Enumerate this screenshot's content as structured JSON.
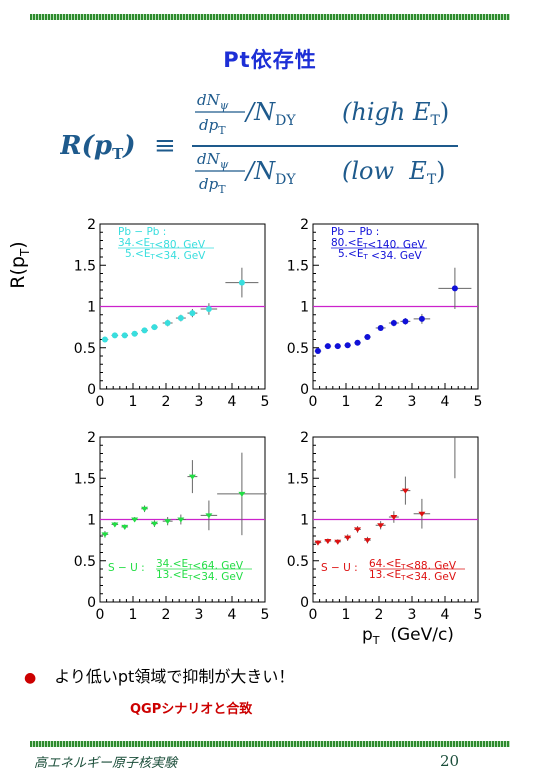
{
  "slide": {
    "title": "Pt依存性",
    "formula": {
      "lhs": "R(p",
      "lhs_sub": "T",
      "lhs_close": ")",
      "equiv": "≡",
      "numerator": {
        "dN": "dN",
        "psi": "ψ",
        "dp": "dp",
        "dp_sub": "T",
        "slash": "/N",
        "dy_sub": "DY",
        "condition": "(high E",
        "cond_sub": "T",
        "cond_close": ")"
      },
      "denominator": {
        "dN": "dN",
        "psi": "ψ",
        "dp": "dp",
        "dp_sub": "T",
        "slash": "/N",
        "dy_sub": "DY",
        "condition": "(low  E",
        "cond_sub": "T",
        "cond_close": ")"
      }
    },
    "y_axis_label": "R(p",
    "y_axis_label_sub": "T",
    "y_axis_label_close": ")",
    "x_axis_label": "p",
    "x_axis_label_sub": "T",
    "x_axis_label_unit": "  (GeV/c)",
    "bullet": "より低いpt領域で抑制が大きい！",
    "note": "QGPシナリオと合致",
    "footer_left": "高エネルギー原子核実験",
    "footer_right": "20"
  },
  "chart_data": [
    {
      "type": "scatter",
      "xlim": [
        0,
        5
      ],
      "ylim": [
        0,
        2
      ],
      "xticks": [
        "0",
        "1",
        "2",
        "3",
        "4",
        "5"
      ],
      "yticks": [
        "0",
        "0.5",
        "1",
        "1.5",
        "2"
      ],
      "reference_line": 1.0,
      "color": "#38dede",
      "legend_lines": [
        "Pb − Pb :",
        "34.<E_T<80. GeV",
        "5.<E_T<34. GeV"
      ],
      "legend_position": "top-left",
      "marker": "circle",
      "points": [
        {
          "x": 0.15,
          "y": 0.6,
          "xerr": 0.1,
          "yerr": 0.03
        },
        {
          "x": 0.45,
          "y": 0.65,
          "xerr": 0.1,
          "yerr": 0.03
        },
        {
          "x": 0.75,
          "y": 0.65,
          "xerr": 0.1,
          "yerr": 0.03
        },
        {
          "x": 1.05,
          "y": 0.67,
          "xerr": 0.1,
          "yerr": 0.03
        },
        {
          "x": 1.35,
          "y": 0.71,
          "xerr": 0.1,
          "yerr": 0.03
        },
        {
          "x": 1.65,
          "y": 0.75,
          "xerr": 0.1,
          "yerr": 0.03
        },
        {
          "x": 2.05,
          "y": 0.8,
          "xerr": 0.15,
          "yerr": 0.04
        },
        {
          "x": 2.45,
          "y": 0.86,
          "xerr": 0.15,
          "yerr": 0.04
        },
        {
          "x": 2.8,
          "y": 0.92,
          "xerr": 0.15,
          "yerr": 0.05
        },
        {
          "x": 3.3,
          "y": 0.97,
          "xerr": 0.25,
          "yerr": 0.07
        },
        {
          "x": 4.3,
          "y": 1.29,
          "xerr": 0.5,
          "yerr": 0.18
        }
      ]
    },
    {
      "type": "scatter",
      "xlim": [
        0,
        5
      ],
      "ylim": [
        0,
        2
      ],
      "xticks": [
        "0",
        "1",
        "2",
        "3",
        "4",
        "5"
      ],
      "yticks": [
        "0",
        "0.5",
        "1",
        "1.5",
        "2"
      ],
      "reference_line": 1.0,
      "color": "#1010d8",
      "legend_lines": [
        "Pb − Pb :",
        "80.<E_T<140. GeV",
        "5.<E_T  <34. GeV"
      ],
      "legend_position": "top-left",
      "marker": "circle",
      "points": [
        {
          "x": 0.15,
          "y": 0.46,
          "xerr": 0.1,
          "yerr": 0.03
        },
        {
          "x": 0.45,
          "y": 0.52,
          "xerr": 0.1,
          "yerr": 0.02
        },
        {
          "x": 0.75,
          "y": 0.52,
          "xerr": 0.1,
          "yerr": 0.02
        },
        {
          "x": 1.05,
          "y": 0.53,
          "xerr": 0.1,
          "yerr": 0.02
        },
        {
          "x": 1.35,
          "y": 0.56,
          "xerr": 0.1,
          "yerr": 0.02
        },
        {
          "x": 1.65,
          "y": 0.63,
          "xerr": 0.1,
          "yerr": 0.03
        },
        {
          "x": 2.05,
          "y": 0.74,
          "xerr": 0.15,
          "yerr": 0.03
        },
        {
          "x": 2.45,
          "y": 0.8,
          "xerr": 0.15,
          "yerr": 0.04
        },
        {
          "x": 2.8,
          "y": 0.82,
          "xerr": 0.15,
          "yerr": 0.04
        },
        {
          "x": 3.3,
          "y": 0.85,
          "xerr": 0.25,
          "yerr": 0.06
        },
        {
          "x": 4.3,
          "y": 1.22,
          "xerr": 0.5,
          "yerr": 0.25
        }
      ]
    },
    {
      "type": "scatter",
      "xlim": [
        0,
        5
      ],
      "ylim": [
        0,
        2
      ],
      "xticks": [
        "0",
        "1",
        "2",
        "3",
        "4",
        "5"
      ],
      "yticks": [
        "0",
        "0.5",
        "1",
        "1.5",
        "2"
      ],
      "reference_line": 1.0,
      "color": "#22dd44",
      "legend_lines": [
        "S − U :",
        "34.<E_T<64. GeV",
        "13.<E_T<34. GeV"
      ],
      "legend_position": "bottom-right",
      "marker": "triangle",
      "points": [
        {
          "x": 0.15,
          "y": 0.82,
          "xerr": 0.1,
          "yerr": 0.04
        },
        {
          "x": 0.45,
          "y": 0.94,
          "xerr": 0.1,
          "yerr": 0.03
        },
        {
          "x": 0.75,
          "y": 0.91,
          "xerr": 0.1,
          "yerr": 0.03
        },
        {
          "x": 1.05,
          "y": 1.0,
          "xerr": 0.1,
          "yerr": 0.03
        },
        {
          "x": 1.35,
          "y": 1.13,
          "xerr": 0.1,
          "yerr": 0.04
        },
        {
          "x": 1.65,
          "y": 0.95,
          "xerr": 0.1,
          "yerr": 0.04
        },
        {
          "x": 2.05,
          "y": 0.98,
          "xerr": 0.15,
          "yerr": 0.05
        },
        {
          "x": 2.45,
          "y": 1.0,
          "xerr": 0.15,
          "yerr": 0.06
        },
        {
          "x": 2.8,
          "y": 1.52,
          "xerr": 0.15,
          "yerr": 0.2
        },
        {
          "x": 3.3,
          "y": 1.05,
          "xerr": 0.25,
          "yerr": 0.18
        },
        {
          "x": 4.3,
          "y": 1.31,
          "xerr": 0.75,
          "yerr": 0.5
        }
      ]
    },
    {
      "type": "scatter",
      "xlim": [
        0,
        5
      ],
      "ylim": [
        0,
        2
      ],
      "xticks": [
        "0",
        "1",
        "2",
        "3",
        "4",
        "5"
      ],
      "yticks": [
        "0",
        "0.5",
        "1",
        "1.5",
        "2"
      ],
      "reference_line": 1.0,
      "color": "#dd1111",
      "legend_lines": [
        "S − U :",
        "64.<E_T<88. GeV",
        "13.<E_T<34. GeV"
      ],
      "legend_position": "bottom-right",
      "marker": "triangle",
      "points": [
        {
          "x": 0.15,
          "y": 0.72,
          "xerr": 0.1,
          "yerr": 0.03
        },
        {
          "x": 0.45,
          "y": 0.74,
          "xerr": 0.1,
          "yerr": 0.03
        },
        {
          "x": 0.75,
          "y": 0.73,
          "xerr": 0.1,
          "yerr": 0.03
        },
        {
          "x": 1.05,
          "y": 0.78,
          "xerr": 0.1,
          "yerr": 0.04
        },
        {
          "x": 1.35,
          "y": 0.88,
          "xerr": 0.1,
          "yerr": 0.04
        },
        {
          "x": 1.65,
          "y": 0.75,
          "xerr": 0.1,
          "yerr": 0.04
        },
        {
          "x": 2.05,
          "y": 0.93,
          "xerr": 0.15,
          "yerr": 0.05
        },
        {
          "x": 2.45,
          "y": 1.03,
          "xerr": 0.15,
          "yerr": 0.07
        },
        {
          "x": 2.8,
          "y": 1.35,
          "xerr": 0.15,
          "yerr": 0.17
        },
        {
          "x": 3.3,
          "y": 1.07,
          "xerr": 0.25,
          "yerr": 0.18
        },
        {
          "x": 4.3,
          "y": 2.0,
          "xerr": 0.0,
          "yerr": 0.5
        }
      ]
    }
  ]
}
